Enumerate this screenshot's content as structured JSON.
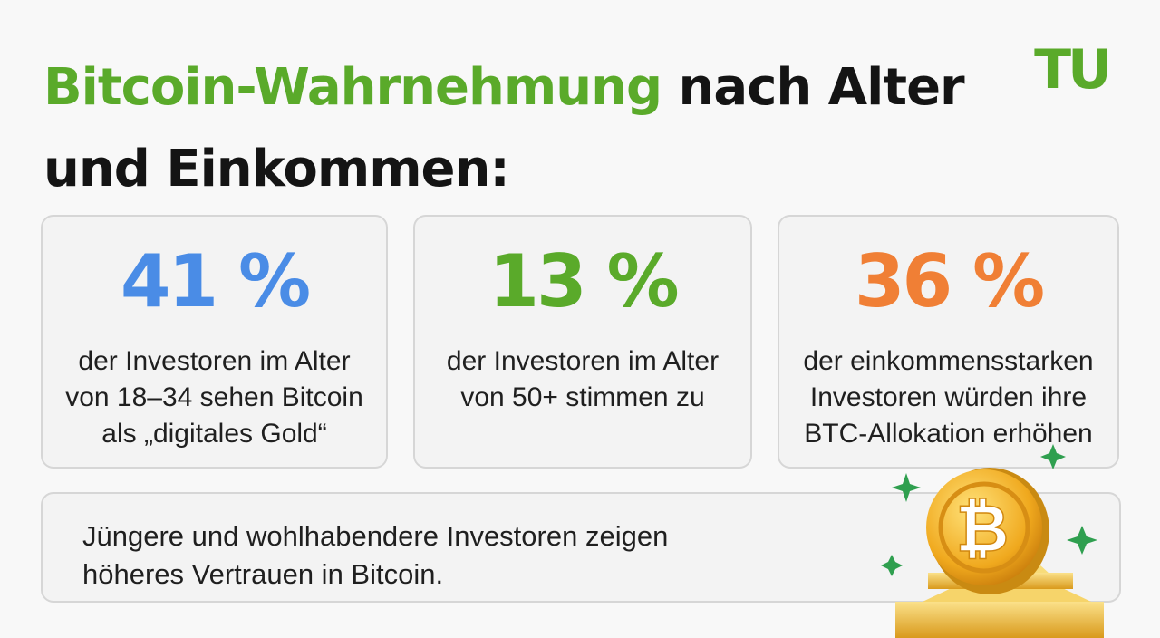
{
  "title": {
    "highlight": "Bitcoin-Wahrnehmung",
    "rest": " nach Alter und Einkommen:"
  },
  "logo": {
    "text": "TU",
    "color": "#5aaa2a"
  },
  "stats": [
    {
      "value": "41 %",
      "color": "#4a8ce6",
      "description": "der Investoren im Alter von 18–34 sehen Bitcoin als „digitales Gold“"
    },
    {
      "value": "13 %",
      "color": "#5aaa2a",
      "description": "der Investoren im Alter von 50+ stimmen zu"
    },
    {
      "value": "36 %",
      "color": "#f07f35",
      "description": "der einkommensstarken Investoren würden ihre BTC-Allokation erhöhen"
    }
  ],
  "summary": "Jüngere und wohlhabendere Investoren zeigen höheres Vertrauen in Bitcoin.",
  "illustration": {
    "icon": "bitcoin-coin-on-gold-bars-icon",
    "symbol": "₿"
  }
}
